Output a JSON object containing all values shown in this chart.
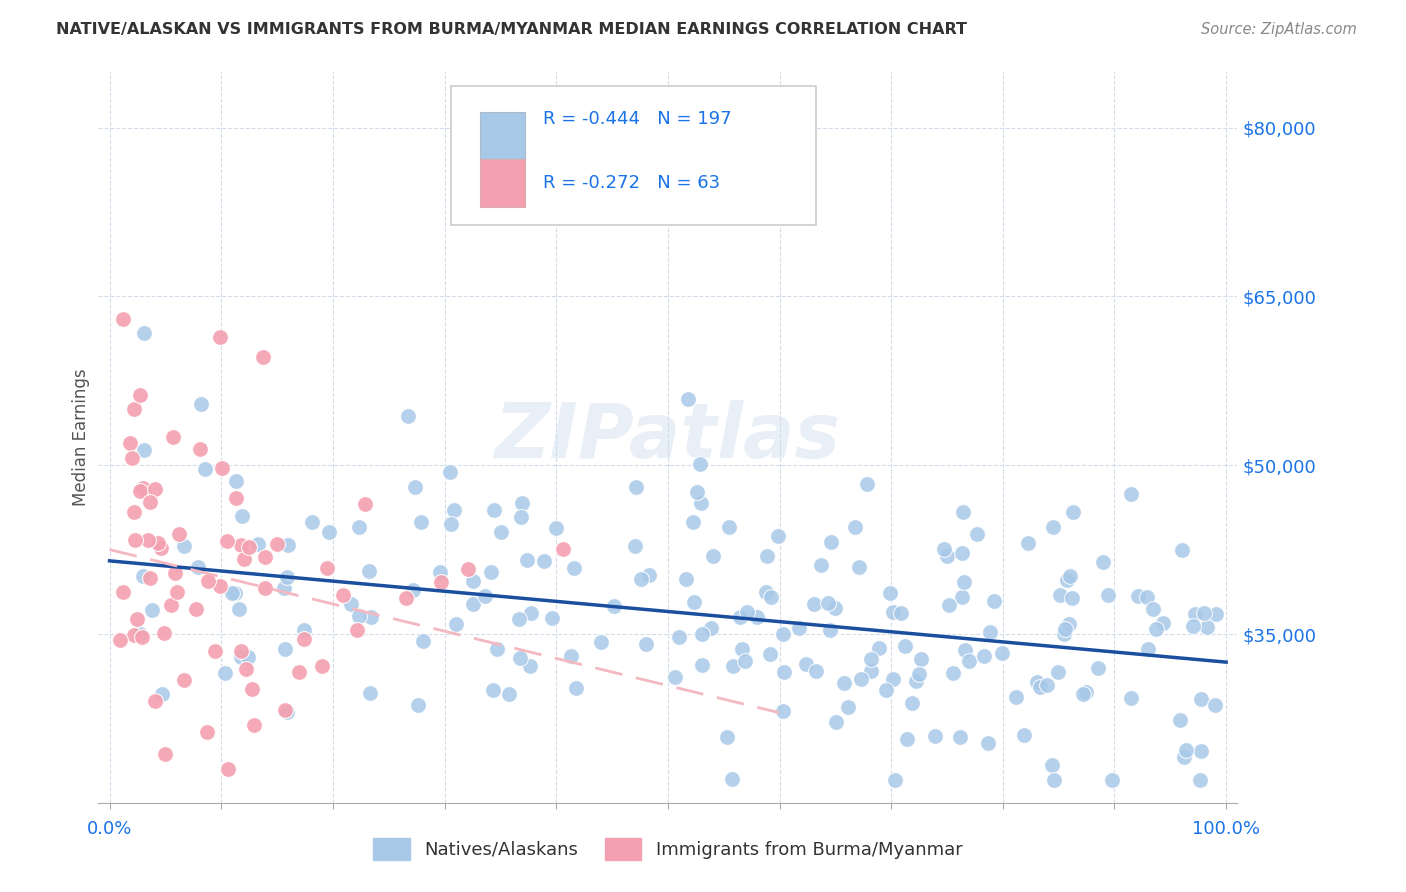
{
  "title": "NATIVE/ALASKAN VS IMMIGRANTS FROM BURMA/MYANMAR MEDIAN EARNINGS CORRELATION CHART",
  "source": "Source: ZipAtlas.com",
  "ylabel": "Median Earnings",
  "ylim": [
    20000,
    85000
  ],
  "xlim": [
    -0.01,
    1.01
  ],
  "ytick_vals": [
    35000,
    50000,
    65000,
    80000
  ],
  "ytick_labels": [
    "$35,000",
    "$50,000",
    "$65,000",
    "$80,000"
  ],
  "legend_r_blue": "-0.444",
  "legend_n_blue": "197",
  "legend_r_pink": "-0.272",
  "legend_n_pink": "63",
  "blue_scatter_color": "#a8c8e8",
  "pink_scatter_color": "#f4a0b0",
  "line_blue_color": "#1a4fa0",
  "line_pink_color": "#f4b8c0",
  "title_color": "#333333",
  "axis_label_color": "#1a73e8",
  "grid_color": "#d0d8e8",
  "watermark": "ZIPatlas",
  "blue_line_x0": 0.0,
  "blue_line_x1": 1.0,
  "blue_line_y0": 41500,
  "blue_line_y1": 32500,
  "pink_line_x0": 0.0,
  "pink_line_x1": 0.6,
  "pink_line_y0": 42500,
  "pink_line_y1": 28000
}
